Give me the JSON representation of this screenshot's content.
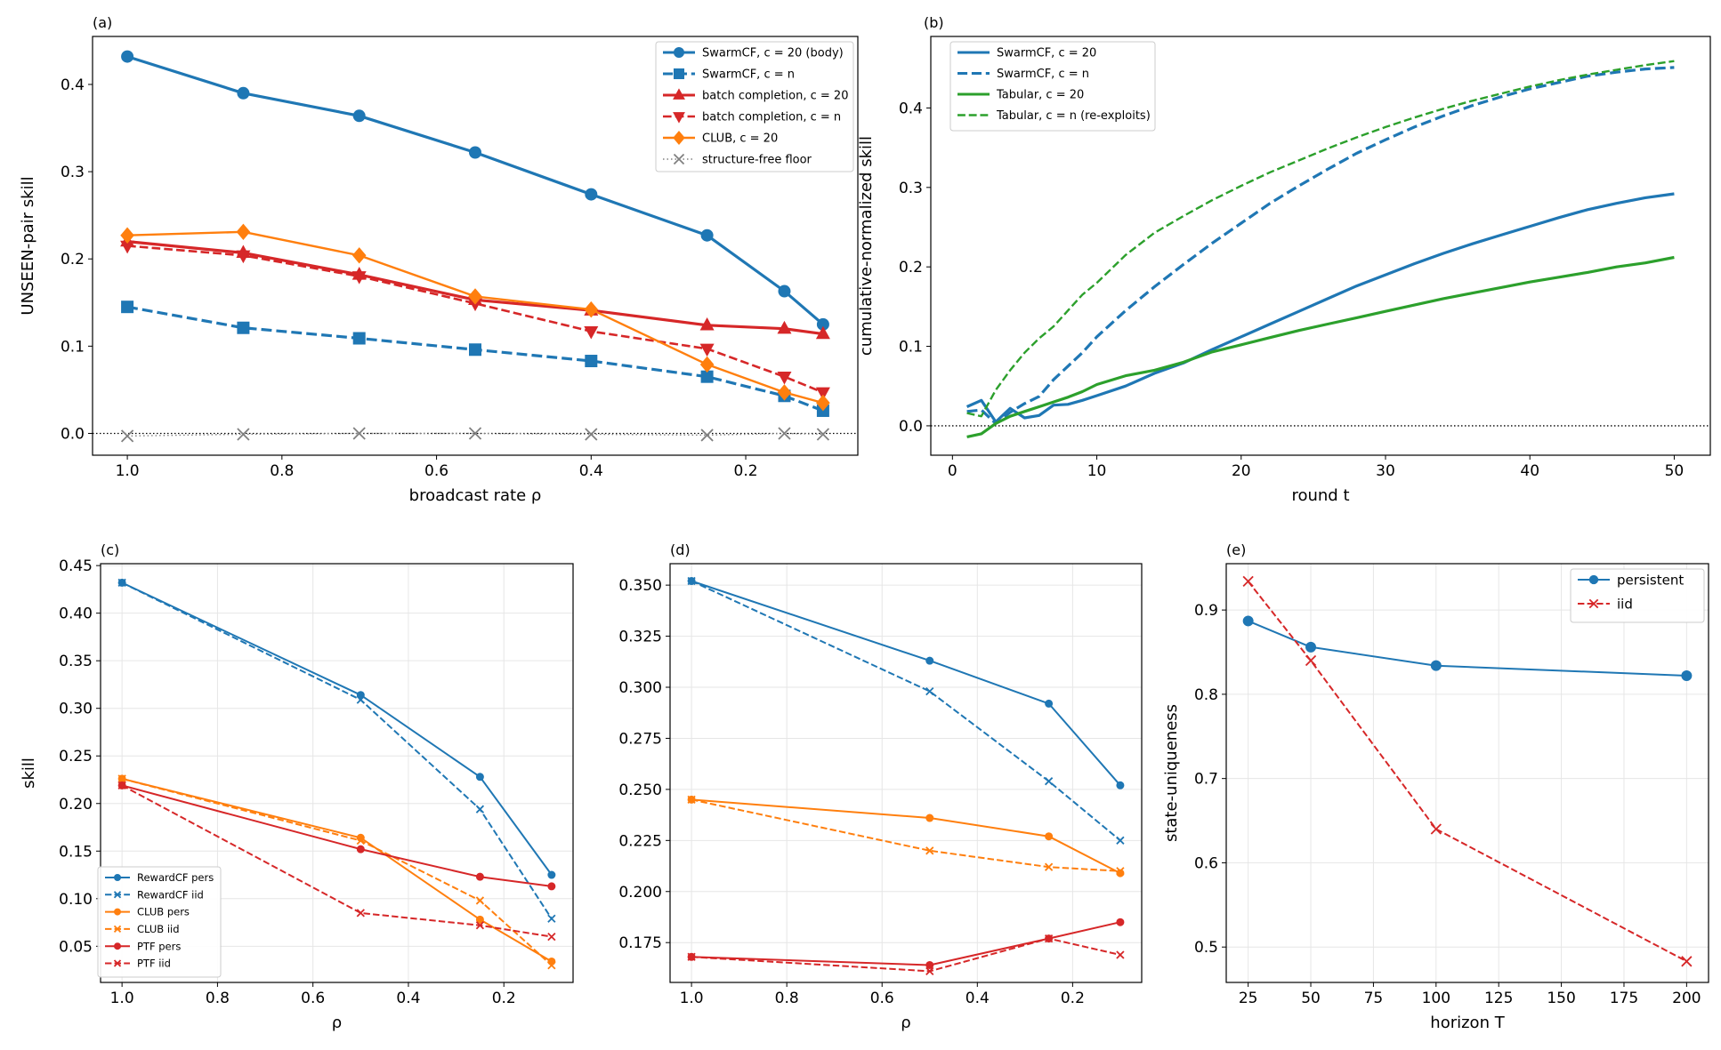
{
  "chart_data": [
    {
      "id": "a",
      "panel_label": "(a)",
      "type": "line",
      "xlabel": "broadcast rate  ρ",
      "ylabel": "UNSEEN-pair skill",
      "xlim": [
        1.045,
        0.055
      ],
      "ylim": [
        -0.025,
        0.455
      ],
      "xticks": [
        1.0,
        0.8,
        0.6,
        0.4,
        0.2
      ],
      "xtick_labels": [
        "1.0",
        "0.8",
        "0.6",
        "0.4",
        "0.2"
      ],
      "yticks": [
        0.0,
        0.1,
        0.2,
        0.3,
        0.4
      ],
      "ytick_labels": [
        "0.0",
        "0.1",
        "0.2",
        "0.3",
        "0.4"
      ],
      "grid": false,
      "zero_line": true,
      "legend_position": "upper right",
      "series": [
        {
          "name": "SwarmCF, c = 20 (body)",
          "color": "#1f77b4",
          "dash": "solid",
          "marker": "circle",
          "width": 3.2,
          "x": [
            1.0,
            0.85,
            0.7,
            0.55,
            0.4,
            0.25,
            0.15,
            0.1
          ],
          "y": [
            0.432,
            0.39,
            0.364,
            0.322,
            0.274,
            0.227,
            0.163,
            0.125
          ]
        },
        {
          "name": "SwarmCF, c = n",
          "color": "#1f77b4",
          "dash": "dashed",
          "marker": "square",
          "width": 3.2,
          "x": [
            1.0,
            0.85,
            0.7,
            0.55,
            0.4,
            0.25,
            0.15,
            0.1
          ],
          "y": [
            0.145,
            0.121,
            0.109,
            0.096,
            0.083,
            0.065,
            0.043,
            0.026
          ]
        },
        {
          "name": "batch completion, c = 20",
          "color": "#d62728",
          "dash": "solid",
          "marker": "triangle-up",
          "width": 3.2,
          "x": [
            1.0,
            0.85,
            0.7,
            0.55,
            0.4,
            0.25,
            0.15,
            0.1
          ],
          "y": [
            0.22,
            0.207,
            0.182,
            0.153,
            0.141,
            0.124,
            0.12,
            0.114
          ]
        },
        {
          "name": "batch completion, c = n",
          "color": "#d62728",
          "dash": "dashed",
          "marker": "triangle-down",
          "width": 2.6,
          "x": [
            1.0,
            0.85,
            0.7,
            0.55,
            0.4,
            0.25,
            0.15,
            0.1
          ],
          "y": [
            0.215,
            0.204,
            0.18,
            0.149,
            0.117,
            0.097,
            0.065,
            0.047
          ]
        },
        {
          "name": "CLUB, c = 20",
          "color": "#ff7f0e",
          "dash": "solid",
          "marker": "diamond",
          "width": 2.4,
          "x": [
            1.0,
            0.85,
            0.7,
            0.55,
            0.4,
            0.25,
            0.15,
            0.1
          ],
          "y": [
            0.227,
            0.231,
            0.204,
            0.157,
            0.142,
            0.079,
            0.047,
            0.035
          ]
        },
        {
          "name": "structure-free floor",
          "color": "#808080",
          "dash": "dotted",
          "marker": "x",
          "width": 1.4,
          "x": [
            1.0,
            0.85,
            0.7,
            0.55,
            0.4,
            0.25,
            0.15,
            0.1
          ],
          "y": [
            -0.003,
            -0.001,
            0.0,
            0.0,
            -0.001,
            -0.002,
            0.0,
            -0.001
          ]
        }
      ]
    },
    {
      "id": "b",
      "panel_label": "(b)",
      "type": "line",
      "xlabel": "round  t",
      "ylabel": "cumulative-normalized skill",
      "xlim": [
        -1.5,
        52.5
      ],
      "ylim": [
        -0.037,
        0.49
      ],
      "xticks": [
        0,
        10,
        20,
        30,
        40,
        50
      ],
      "xtick_labels": [
        "0",
        "10",
        "20",
        "30",
        "40",
        "50"
      ],
      "yticks": [
        0.0,
        0.1,
        0.2,
        0.3,
        0.4
      ],
      "ytick_labels": [
        "0.0",
        "0.1",
        "0.2",
        "0.3",
        "0.4"
      ],
      "grid": false,
      "zero_line": true,
      "legend_position": "upper left",
      "series": [
        {
          "name": "SwarmCF, c = 20",
          "color": "#1f77b4",
          "dash": "solid",
          "marker": "none",
          "width": 3.2,
          "x": [
            1,
            2,
            3,
            4,
            5,
            6,
            7,
            8,
            9,
            10,
            12,
            14,
            16,
            18,
            20,
            22,
            24,
            26,
            28,
            30,
            32,
            34,
            36,
            38,
            40,
            42,
            44,
            46,
            48,
            50
          ],
          "y": [
            0.024,
            0.032,
            0.005,
            0.022,
            0.01,
            0.013,
            0.026,
            0.027,
            0.032,
            0.038,
            0.05,
            0.066,
            0.079,
            0.096,
            0.112,
            0.128,
            0.144,
            0.16,
            0.176,
            0.19,
            0.204,
            0.217,
            0.229,
            0.24,
            0.251,
            0.262,
            0.272,
            0.28,
            0.287,
            0.292
          ]
        },
        {
          "name": "SwarmCF, c = n",
          "color": "#1f77b4",
          "dash": "dashed",
          "marker": "none",
          "width": 3.2,
          "x": [
            1,
            2,
            3,
            4,
            5,
            6,
            7,
            8,
            9,
            10,
            12,
            14,
            16,
            18,
            20,
            22,
            24,
            26,
            28,
            30,
            32,
            34,
            36,
            38,
            40,
            42,
            44,
            46,
            48,
            50
          ],
          "y": [
            0.018,
            0.02,
            0.003,
            0.017,
            0.028,
            0.037,
            0.058,
            0.075,
            0.092,
            0.112,
            0.145,
            0.175,
            0.203,
            0.23,
            0.255,
            0.28,
            0.302,
            0.323,
            0.343,
            0.36,
            0.376,
            0.39,
            0.403,
            0.414,
            0.424,
            0.432,
            0.44,
            0.445,
            0.449,
            0.451
          ]
        },
        {
          "name": "Tabular, c = 20",
          "color": "#2ca02c",
          "dash": "solid",
          "marker": "none",
          "width": 3.2,
          "x": [
            1,
            2,
            3,
            4,
            5,
            6,
            7,
            8,
            9,
            10,
            12,
            14,
            16,
            18,
            20,
            22,
            24,
            26,
            28,
            30,
            32,
            34,
            36,
            38,
            40,
            42,
            44,
            46,
            48,
            50
          ],
          "y": [
            -0.014,
            -0.01,
            0.003,
            0.012,
            0.018,
            0.024,
            0.03,
            0.036,
            0.043,
            0.052,
            0.063,
            0.07,
            0.08,
            0.093,
            0.102,
            0.111,
            0.12,
            0.128,
            0.136,
            0.144,
            0.152,
            0.16,
            0.167,
            0.174,
            0.181,
            0.187,
            0.193,
            0.2,
            0.205,
            0.212
          ]
        },
        {
          "name": "Tabular, c = n (re-exploits)",
          "color": "#2ca02c",
          "dash": "dashed",
          "marker": "none",
          "width": 2.4,
          "x": [
            1,
            2,
            3,
            4,
            5,
            6,
            7,
            8,
            9,
            10,
            12,
            14,
            16,
            18,
            20,
            22,
            24,
            26,
            28,
            30,
            32,
            34,
            36,
            38,
            40,
            42,
            44,
            46,
            48,
            50
          ],
          "y": [
            0.016,
            0.012,
            0.045,
            0.07,
            0.092,
            0.11,
            0.125,
            0.145,
            0.165,
            0.18,
            0.215,
            0.243,
            0.264,
            0.284,
            0.302,
            0.319,
            0.334,
            0.349,
            0.363,
            0.376,
            0.388,
            0.399,
            0.409,
            0.418,
            0.427,
            0.435,
            0.442,
            0.448,
            0.454,
            0.459
          ]
        }
      ]
    },
    {
      "id": "c",
      "panel_label": "(c)",
      "type": "line",
      "xlabel": "ρ",
      "ylabel": "skill",
      "xlim": [
        1.045,
        0.055
      ],
      "ylim": [
        0.012,
        0.452
      ],
      "xticks": [
        1.0,
        0.8,
        0.6,
        0.4,
        0.2
      ],
      "xtick_labels": [
        "1.0",
        "0.8",
        "0.6",
        "0.4",
        "0.2"
      ],
      "yticks": [
        0.05,
        0.1,
        0.15,
        0.2,
        0.25,
        0.3,
        0.35,
        0.4,
        0.45
      ],
      "ytick_labels": [
        "0.05",
        "0.10",
        "0.15",
        "0.20",
        "0.25",
        "0.30",
        "0.35",
        "0.40",
        "0.45"
      ],
      "grid": true,
      "zero_line": false,
      "legend_position": "lower left",
      "series": [
        {
          "name": "RewardCF pers",
          "color": "#1f77b4",
          "dash": "solid",
          "marker": "circle",
          "width": 2.0,
          "x": [
            1.0,
            0.5,
            0.25,
            0.1
          ],
          "y": [
            0.432,
            0.314,
            0.228,
            0.125
          ]
        },
        {
          "name": "RewardCF iid",
          "color": "#1f77b4",
          "dash": "dashed",
          "marker": "x",
          "width": 2.0,
          "x": [
            1.0,
            0.5,
            0.25,
            0.1
          ],
          "y": [
            0.432,
            0.309,
            0.194,
            0.079
          ]
        },
        {
          "name": "CLUB pers",
          "color": "#ff7f0e",
          "dash": "solid",
          "marker": "circle",
          "width": 2.0,
          "x": [
            1.0,
            0.5,
            0.25,
            0.1
          ],
          "y": [
            0.226,
            0.164,
            0.078,
            0.034
          ]
        },
        {
          "name": "CLUB iid",
          "color": "#ff7f0e",
          "dash": "dashed",
          "marker": "x",
          "width": 2.0,
          "x": [
            1.0,
            0.5,
            0.25,
            0.1
          ],
          "y": [
            0.226,
            0.161,
            0.098,
            0.03
          ]
        },
        {
          "name": "PTF pers",
          "color": "#d62728",
          "dash": "solid",
          "marker": "circle",
          "width": 2.0,
          "x": [
            1.0,
            0.5,
            0.25,
            0.1
          ],
          "y": [
            0.219,
            0.152,
            0.123,
            0.113
          ]
        },
        {
          "name": "PTF iid",
          "color": "#d62728",
          "dash": "dashed",
          "marker": "x",
          "width": 2.0,
          "x": [
            1.0,
            0.5,
            0.25,
            0.1
          ],
          "y": [
            0.219,
            0.085,
            0.072,
            0.06
          ]
        }
      ]
    },
    {
      "id": "d",
      "panel_label": "(d)",
      "type": "line",
      "xlabel": "ρ",
      "ylabel": "",
      "xlim": [
        1.045,
        0.055
      ],
      "ylim": [
        0.1555,
        0.3605
      ],
      "xticks": [
        1.0,
        0.8,
        0.6,
        0.4,
        0.2
      ],
      "xtick_labels": [
        "1.0",
        "0.8",
        "0.6",
        "0.4",
        "0.2"
      ],
      "yticks": [
        0.175,
        0.2,
        0.225,
        0.25,
        0.275,
        0.3,
        0.325,
        0.35
      ],
      "ytick_labels": [
        "0.175",
        "0.200",
        "0.225",
        "0.250",
        "0.275",
        "0.300",
        "0.325",
        "0.350"
      ],
      "grid": true,
      "zero_line": false,
      "legend_position": "none",
      "series": [
        {
          "name": "RewardCF pers",
          "color": "#1f77b4",
          "dash": "solid",
          "marker": "circle",
          "width": 2.0,
          "x": [
            1.0,
            0.5,
            0.25,
            0.1
          ],
          "y": [
            0.352,
            0.313,
            0.292,
            0.252
          ]
        },
        {
          "name": "RewardCF iid",
          "color": "#1f77b4",
          "dash": "dashed",
          "marker": "x",
          "width": 2.0,
          "x": [
            1.0,
            0.5,
            0.25,
            0.1
          ],
          "y": [
            0.352,
            0.298,
            0.254,
            0.225
          ]
        },
        {
          "name": "CLUB pers",
          "color": "#ff7f0e",
          "dash": "solid",
          "marker": "circle",
          "width": 2.0,
          "x": [
            1.0,
            0.5,
            0.25,
            0.1
          ],
          "y": [
            0.245,
            0.236,
            0.227,
            0.209
          ]
        },
        {
          "name": "CLUB iid",
          "color": "#ff7f0e",
          "dash": "dashed",
          "marker": "x",
          "width": 2.0,
          "x": [
            1.0,
            0.5,
            0.25,
            0.1
          ],
          "y": [
            0.245,
            0.22,
            0.212,
            0.21
          ]
        },
        {
          "name": "PTF pers",
          "color": "#d62728",
          "dash": "solid",
          "marker": "circle",
          "width": 2.0,
          "x": [
            1.0,
            0.5,
            0.25,
            0.1
          ],
          "y": [
            0.168,
            0.164,
            0.177,
            0.185
          ]
        },
        {
          "name": "PTF iid",
          "color": "#d62728",
          "dash": "dashed",
          "marker": "x",
          "width": 2.0,
          "x": [
            1.0,
            0.5,
            0.25,
            0.1
          ],
          "y": [
            0.168,
            0.161,
            0.177,
            0.169
          ]
        }
      ]
    },
    {
      "id": "e",
      "panel_label": "(e)",
      "type": "line",
      "xlabel": "horizon T",
      "ylabel": "state-uniqueness",
      "xlim": [
        16.25,
        208.75
      ],
      "ylim": [
        0.458,
        0.955
      ],
      "xticks": [
        25,
        50,
        75,
        100,
        125,
        150,
        175,
        200
      ],
      "xtick_labels": [
        "25",
        "50",
        "75",
        "100",
        "125",
        "150",
        "175",
        "200"
      ],
      "yticks": [
        0.5,
        0.6,
        0.7,
        0.8,
        0.9
      ],
      "ytick_labels": [
        "0.5",
        "0.6",
        "0.7",
        "0.8",
        "0.9"
      ],
      "grid": true,
      "zero_line": false,
      "legend_position": "upper right",
      "series": [
        {
          "name": "persistent",
          "color": "#1f77b4",
          "dash": "solid",
          "marker": "circle",
          "width": 2.0,
          "x": [
            25,
            50,
            100,
            200
          ],
          "y": [
            0.887,
            0.856,
            0.834,
            0.822
          ]
        },
        {
          "name": "iid",
          "color": "#d62728",
          "dash": "dashed",
          "marker": "x",
          "width": 2.0,
          "x": [
            25,
            50,
            100,
            200
          ],
          "y": [
            0.934,
            0.84,
            0.64,
            0.483
          ]
        }
      ]
    }
  ]
}
